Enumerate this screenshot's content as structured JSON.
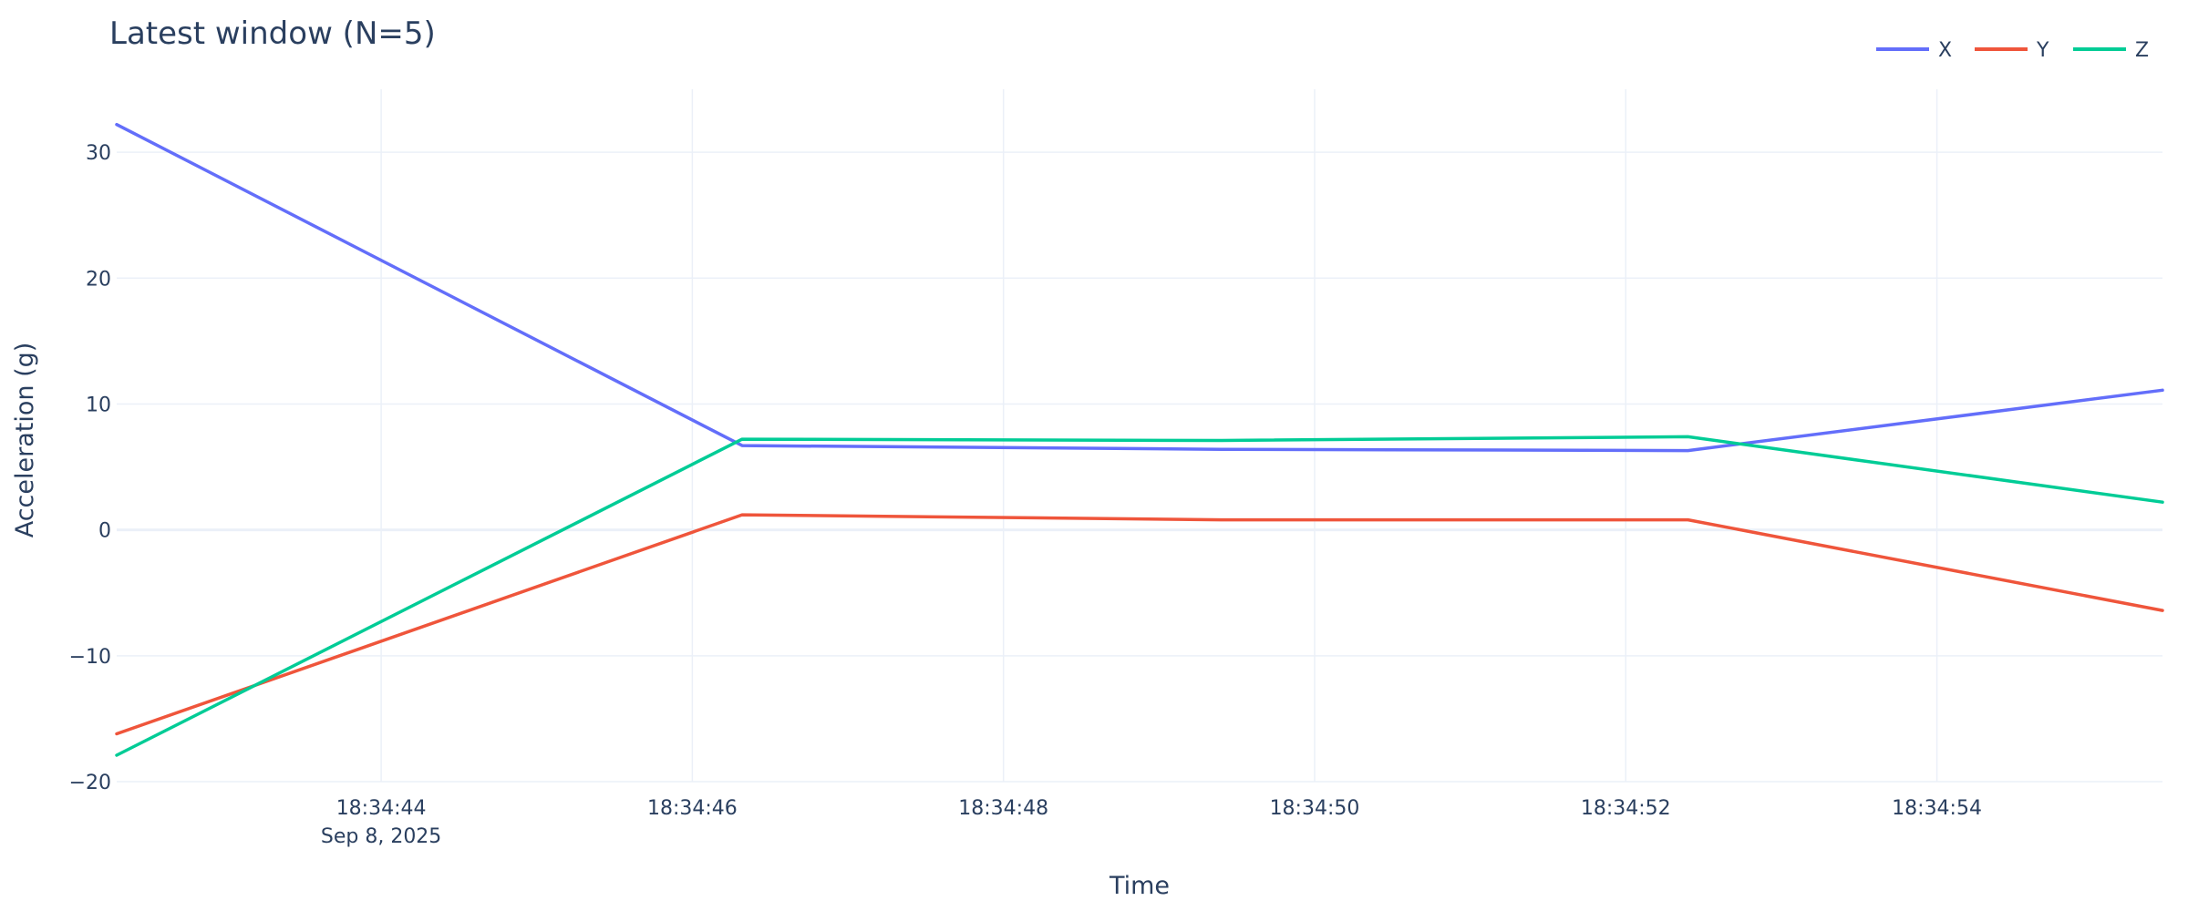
{
  "chart_data": {
    "type": "line",
    "title": "Latest window (N=5)",
    "xlabel": "Time",
    "ylabel": "Acceleration (g)",
    "x": [
      "2025-09-08 18:34:42.30",
      "2025-09-08 18:34:46.32",
      "2025-09-08 18:34:49.40",
      "2025-09-08 18:34:52.40",
      "2025-09-08 18:34:55.45"
    ],
    "series": [
      {
        "name": "X",
        "color": "#636efa",
        "values": [
          32.2,
          6.7,
          6.4,
          6.3,
          11.1
        ]
      },
      {
        "name": "Y",
        "color": "#ef553b",
        "values": [
          -16.2,
          1.2,
          0.8,
          0.8,
          -6.4
        ]
      },
      {
        "name": "Z",
        "color": "#00cc96",
        "values": [
          -17.9,
          7.2,
          7.1,
          7.4,
          2.2
        ]
      }
    ],
    "x_ticks": [
      {
        "t": "18:34:44",
        "label": "18:34:44",
        "sublabel": "Sep 8, 2025"
      },
      {
        "t": "18:34:46",
        "label": "18:34:46"
      },
      {
        "t": "18:34:48",
        "label": "18:34:48"
      },
      {
        "t": "18:34:50",
        "label": "18:34:50"
      },
      {
        "t": "18:34:52",
        "label": "18:34:52"
      },
      {
        "t": "18:34:54",
        "label": "18:34:54"
      }
    ],
    "y_ticks": [
      {
        "v": 30,
        "label": "30"
      },
      {
        "v": 20,
        "label": "20"
      },
      {
        "v": 10,
        "label": "10"
      },
      {
        "v": 0,
        "label": "0"
      },
      {
        "v": -10,
        "label": "−10"
      },
      {
        "v": -20,
        "label": "−20"
      }
    ],
    "xlim": [
      "2025-09-08 18:34:42.30",
      "2025-09-08 18:34:55.45"
    ],
    "ylim": [
      -20,
      35
    ],
    "grid": true,
    "legend_position": "top-right"
  }
}
